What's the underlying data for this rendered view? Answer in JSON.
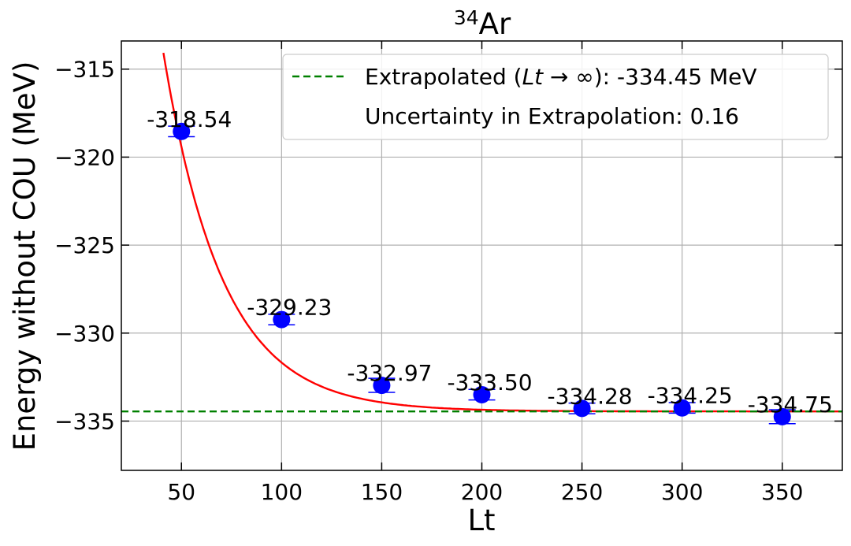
{
  "chart_data": {
    "type": "scatter",
    "title_superscript": "34",
    "title_main": "Ar",
    "xlabel": "Lt",
    "ylabel": "Energy without COU (MeV)",
    "xlim": [
      20,
      380
    ],
    "ylim": [
      -337.8,
      -313.4
    ],
    "xticks": [
      50,
      100,
      150,
      200,
      250,
      300,
      350
    ],
    "yticks": [
      -315,
      -320,
      -325,
      -330,
      -335
    ],
    "ytick_labels": [
      "−315",
      "−320",
      "−325",
      "−330",
      "−335"
    ],
    "grid": true,
    "points": [
      {
        "x": 50,
        "y": -318.54,
        "err": 0.3,
        "label": "-318.54"
      },
      {
        "x": 100,
        "y": -329.23,
        "err": 0.3,
        "label": "-329.23"
      },
      {
        "x": 150,
        "y": -332.97,
        "err": 0.4,
        "label": "-332.97"
      },
      {
        "x": 200,
        "y": -333.5,
        "err": 0.3,
        "label": "-333.50"
      },
      {
        "x": 250,
        "y": -334.28,
        "err": 0.3,
        "label": "-334.28"
      },
      {
        "x": 300,
        "y": -334.25,
        "err": 0.3,
        "label": "-334.25"
      },
      {
        "x": 350,
        "y": -334.75,
        "err": 0.4,
        "label": "-334.75"
      }
    ],
    "fit": {
      "asymptote": -334.45,
      "amplitude": 81.4,
      "decay": 29.6
    },
    "extrapolated_value": -334.45,
    "legend": {
      "location": "top-right",
      "entries": [
        {
          "prefix": "Extrapolated (",
          "italic": "Lt",
          "arrow": " → ∞",
          "suffix": "): -334.45 MeV"
        },
        {
          "text": "Uncertainty in Extrapolation: 0.16"
        }
      ]
    },
    "colors": {
      "points": "#0000ff",
      "fit": "#ff0000",
      "extrapolation": "#008000",
      "grid": "#b0b0b0"
    }
  }
}
